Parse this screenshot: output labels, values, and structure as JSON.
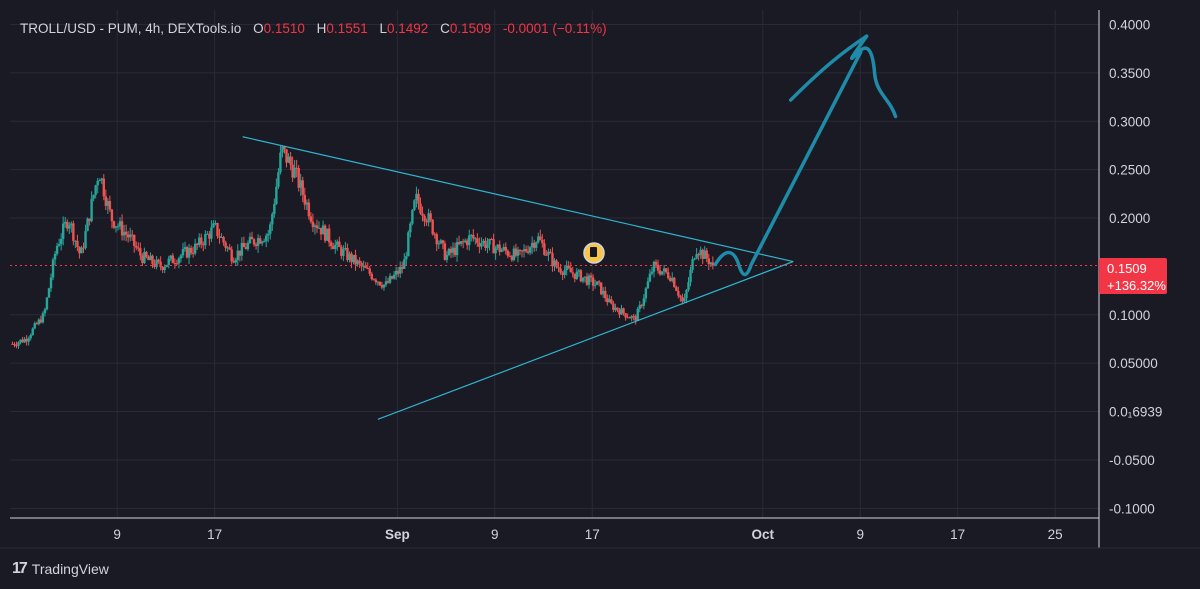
{
  "legend": {
    "symbol": "TROLL/USD - PUM, 4h, DEXTools.io",
    "open_label": "O",
    "open": "0.1510",
    "high_label": "H",
    "high": "0.1551",
    "low_label": "L",
    "low": "0.1492",
    "close_label": "C",
    "close": "0.1509",
    "change": "-0.0001 (−0.11%)"
  },
  "price_badge": {
    "price": "0.1509",
    "change_pct": "+136.32%"
  },
  "branding": {
    "name": "TradingView",
    "logo_glyph": "17"
  },
  "colors": {
    "background": "#1a1a25",
    "grid": "#2a2a36",
    "up": "#26a69a",
    "down": "#ef5350",
    "trendline": "#2fb5d0",
    "drawing": "#1e8ca8",
    "price_line": "#f23645",
    "text": "#d1d4dc"
  },
  "chart_data": {
    "type": "candlestick",
    "title": "TROLL/USD - PUM, 4h, DEXTools.io",
    "ylim": [
      -0.11,
      0.415
    ],
    "y_ticks": [
      "0.4000",
      "0.3500",
      "0.3000",
      "0.2500",
      "0.2000",
      "0.1000",
      "0.05000",
      "0.0₁6939",
      "-0.0500",
      "-0.1000"
    ],
    "y_tick_values": [
      0.4,
      0.35,
      0.3,
      0.25,
      0.2,
      0.1,
      0.05,
      0.0,
      -0.05,
      -0.1
    ],
    "x_ticks": [
      {
        "label": "9",
        "day": 9,
        "bold": false
      },
      {
        "label": "17",
        "day": 17,
        "bold": false
      },
      {
        "label": "Sep",
        "day": 32,
        "bold": true
      },
      {
        "label": "9",
        "day": 40,
        "bold": false
      },
      {
        "label": "17",
        "day": 48,
        "bold": false
      },
      {
        "label": "Oct",
        "day": 62,
        "bold": true
      },
      {
        "label": "9",
        "day": 70,
        "bold": false
      },
      {
        "label": "17",
        "day": 78,
        "bold": false
      },
      {
        "label": "25",
        "day": 86,
        "bold": false
      }
    ],
    "x_unit": "days since Aug 1",
    "xlim": [
      0.2,
      89.6
    ],
    "last_price": 0.1509,
    "price_path": [
      [
        0.4,
        0.07
      ],
      [
        1.5,
        0.075
      ],
      [
        3.0,
        0.1
      ],
      [
        4.0,
        0.17
      ],
      [
        5.0,
        0.2
      ],
      [
        6.0,
        0.16
      ],
      [
        7.5,
        0.25
      ],
      [
        8.5,
        0.2
      ],
      [
        10.0,
        0.18
      ],
      [
        11.0,
        0.16
      ],
      [
        12.5,
        0.15
      ],
      [
        14.0,
        0.16
      ],
      [
        15.5,
        0.17
      ],
      [
        17.0,
        0.19
      ],
      [
        18.5,
        0.16
      ],
      [
        20.0,
        0.175
      ],
      [
        21.5,
        0.185
      ],
      [
        22.5,
        0.27
      ],
      [
        23.5,
        0.25
      ],
      [
        25.0,
        0.2
      ],
      [
        27.0,
        0.17
      ],
      [
        29.0,
        0.15
      ],
      [
        31.0,
        0.13
      ],
      [
        32.5,
        0.15
      ],
      [
        33.5,
        0.22
      ],
      [
        34.5,
        0.2
      ],
      [
        36.0,
        0.16
      ],
      [
        38.0,
        0.18
      ],
      [
        40.0,
        0.17
      ],
      [
        42.0,
        0.16
      ],
      [
        43.5,
        0.18
      ],
      [
        45.0,
        0.15
      ],
      [
        47.0,
        0.14
      ],
      [
        48.5,
        0.13
      ],
      [
        49.5,
        0.11
      ],
      [
        51.5,
        0.095
      ],
      [
        52.0,
        0.11
      ],
      [
        53.0,
        0.15
      ],
      [
        54.5,
        0.14
      ],
      [
        55.5,
        0.11
      ],
      [
        56.5,
        0.17
      ],
      [
        58.0,
        0.1509
      ]
    ],
    "trendlines": [
      {
        "name": "upper",
        "from": [
          19.3,
          0.284
        ],
        "to": [
          64.5,
          0.155
        ]
      },
      {
        "name": "lower",
        "from": [
          30.4,
          -0.008
        ],
        "to": [
          64.5,
          0.155
        ]
      }
    ],
    "drawn_projection": {
      "from": [
        58.1,
        0.152
      ],
      "peak": [
        70.2,
        0.386
      ],
      "to": [
        72.9,
        0.305
      ]
    },
    "price_line": 0.1509
  }
}
